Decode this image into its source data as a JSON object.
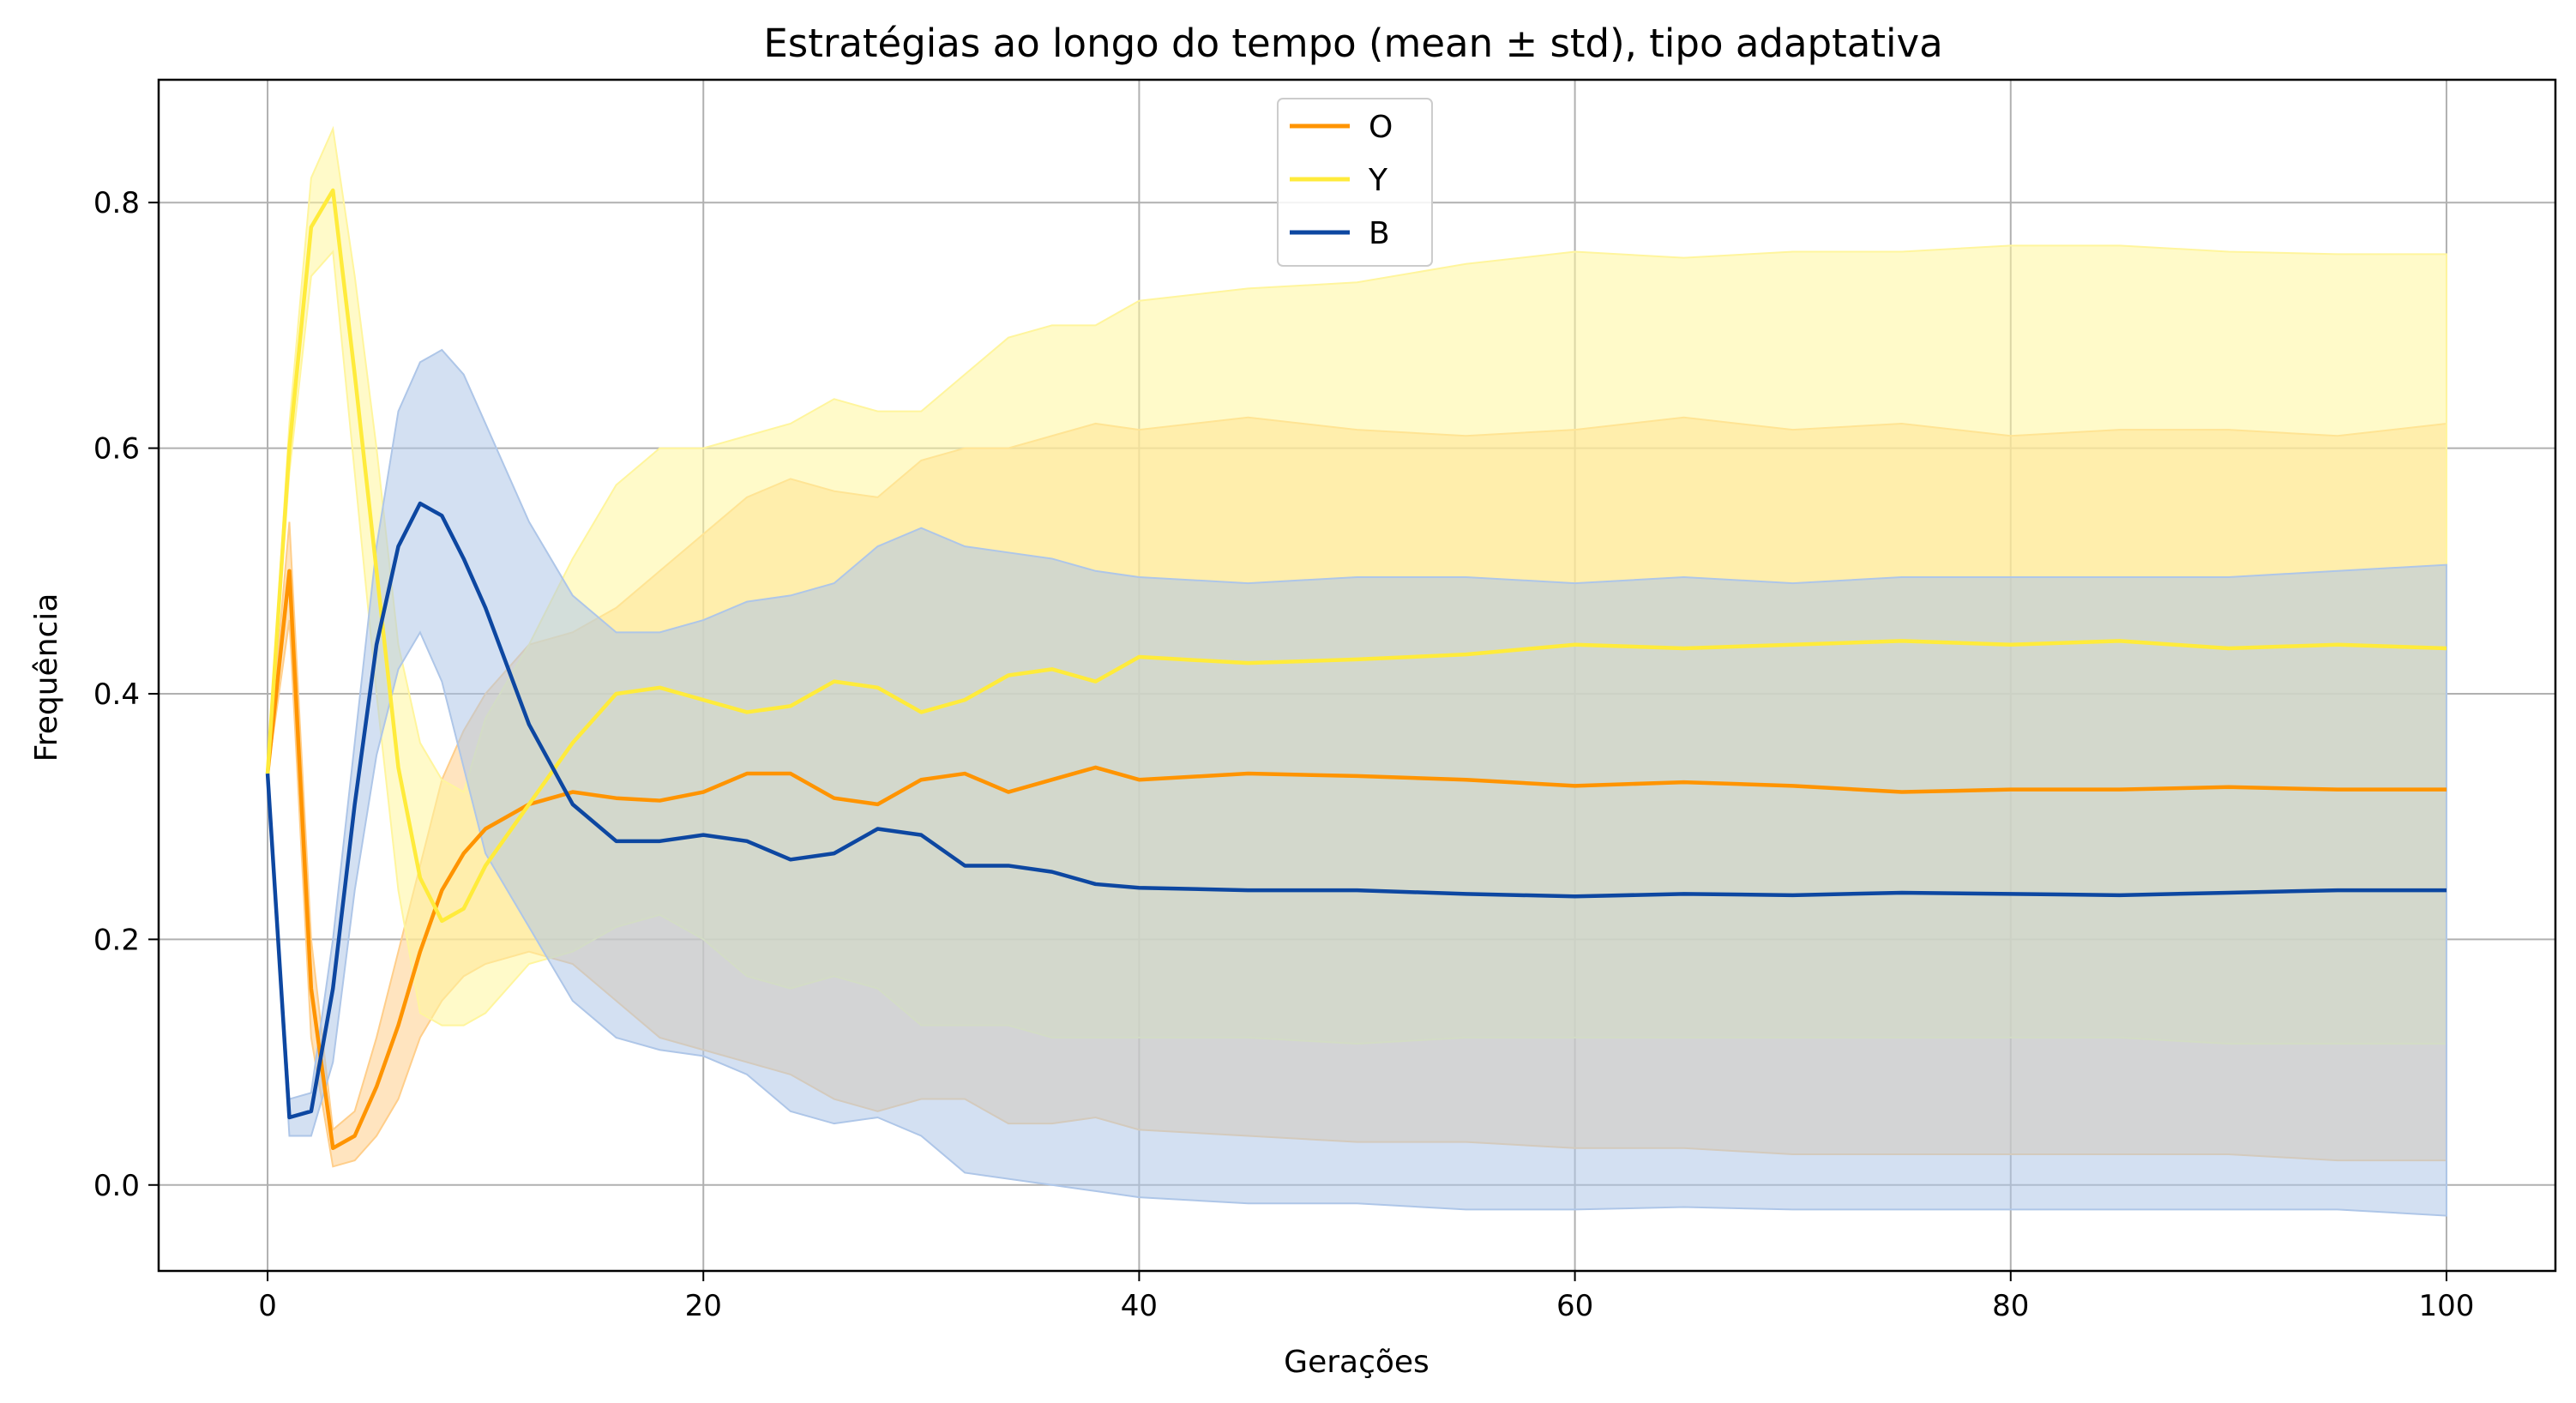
{
  "chart_data": {
    "type": "line",
    "title": "Estratégias ao longo do tempo (mean ± std), tipo adaptativa",
    "xlabel": "Gerações",
    "ylabel": "Frequência",
    "xlim": [
      -5,
      105
    ],
    "ylim": [
      -0.07,
      0.9
    ],
    "xticks": [
      0,
      20,
      40,
      60,
      80,
      100
    ],
    "yticks": [
      0.0,
      0.2,
      0.4,
      0.6,
      0.8
    ],
    "xtick_labels": [
      "0",
      "20",
      "40",
      "60",
      "80",
      "100"
    ],
    "ytick_labels": [
      "0.0",
      "0.2",
      "0.4",
      "0.6",
      "0.8"
    ],
    "grid": true,
    "legend_position": "top-center",
    "band": "mean ± std",
    "x": [
      0,
      1,
      2,
      3,
      4,
      5,
      6,
      7,
      8,
      9,
      10,
      12,
      14,
      16,
      18,
      20,
      22,
      24,
      26,
      28,
      30,
      32,
      34,
      36,
      38,
      40,
      45,
      50,
      55,
      60,
      65,
      70,
      75,
      80,
      85,
      90,
      95,
      100
    ],
    "series": [
      {
        "name": "O",
        "color": "#ff9400",
        "band_color": "#ffce8a",
        "mean": [
          0.335,
          0.5,
          0.16,
          0.03,
          0.04,
          0.08,
          0.13,
          0.19,
          0.24,
          0.27,
          0.29,
          0.31,
          0.32,
          0.315,
          0.313,
          0.32,
          0.335,
          0.335,
          0.315,
          0.31,
          0.33,
          0.335,
          0.32,
          0.33,
          0.34,
          0.33,
          0.335,
          0.333,
          0.33,
          0.325,
          0.328,
          0.325,
          0.32,
          0.322,
          0.322,
          0.324,
          0.322,
          0.322
        ],
        "upper": [
          0.335,
          0.54,
          0.2,
          0.045,
          0.06,
          0.12,
          0.19,
          0.26,
          0.33,
          0.37,
          0.4,
          0.44,
          0.45,
          0.47,
          0.5,
          0.53,
          0.56,
          0.575,
          0.565,
          0.56,
          0.59,
          0.6,
          0.6,
          0.61,
          0.62,
          0.615,
          0.625,
          0.615,
          0.61,
          0.615,
          0.625,
          0.615,
          0.62,
          0.61,
          0.615,
          0.615,
          0.61,
          0.62
        ],
        "lower": [
          0.335,
          0.46,
          0.12,
          0.015,
          0.02,
          0.04,
          0.07,
          0.12,
          0.15,
          0.17,
          0.18,
          0.19,
          0.18,
          0.15,
          0.12,
          0.11,
          0.1,
          0.09,
          0.07,
          0.06,
          0.07,
          0.07,
          0.05,
          0.05,
          0.055,
          0.045,
          0.04,
          0.035,
          0.035,
          0.03,
          0.03,
          0.025,
          0.025,
          0.025,
          0.025,
          0.025,
          0.02,
          0.02
        ]
      },
      {
        "name": "Y",
        "color": "#ffeb3b",
        "band_color": "#fff59d",
        "mean": [
          0.335,
          0.6,
          0.78,
          0.81,
          0.66,
          0.5,
          0.34,
          0.25,
          0.215,
          0.225,
          0.26,
          0.31,
          0.36,
          0.4,
          0.405,
          0.395,
          0.385,
          0.39,
          0.41,
          0.405,
          0.385,
          0.395,
          0.415,
          0.42,
          0.41,
          0.43,
          0.425,
          0.428,
          0.432,
          0.44,
          0.437,
          0.44,
          0.443,
          0.44,
          0.443,
          0.437,
          0.44,
          0.437
        ],
        "upper": [
          0.335,
          0.62,
          0.82,
          0.86,
          0.74,
          0.6,
          0.44,
          0.36,
          0.33,
          0.32,
          0.38,
          0.44,
          0.51,
          0.57,
          0.6,
          0.6,
          0.61,
          0.62,
          0.64,
          0.63,
          0.63,
          0.66,
          0.69,
          0.7,
          0.7,
          0.72,
          0.73,
          0.735,
          0.75,
          0.76,
          0.755,
          0.76,
          0.76,
          0.765,
          0.765,
          0.76,
          0.758,
          0.758
        ],
        "lower": [
          0.335,
          0.58,
          0.74,
          0.76,
          0.58,
          0.4,
          0.24,
          0.14,
          0.13,
          0.13,
          0.14,
          0.18,
          0.19,
          0.21,
          0.22,
          0.2,
          0.17,
          0.16,
          0.17,
          0.16,
          0.13,
          0.13,
          0.13,
          0.12,
          0.12,
          0.12,
          0.12,
          0.115,
          0.12,
          0.12,
          0.12,
          0.12,
          0.12,
          0.12,
          0.12,
          0.115,
          0.115,
          0.115
        ]
      },
      {
        "name": "B",
        "color": "#0d47a1",
        "band_color": "#aec6e8",
        "mean": [
          0.335,
          0.055,
          0.06,
          0.16,
          0.31,
          0.44,
          0.52,
          0.555,
          0.545,
          0.51,
          0.47,
          0.375,
          0.31,
          0.28,
          0.28,
          0.285,
          0.28,
          0.265,
          0.27,
          0.29,
          0.285,
          0.26,
          0.26,
          0.255,
          0.245,
          0.242,
          0.24,
          0.24,
          0.237,
          0.235,
          0.237,
          0.236,
          0.238,
          0.237,
          0.236,
          0.238,
          0.24,
          0.24
        ],
        "upper": [
          0.335,
          0.07,
          0.075,
          0.2,
          0.36,
          0.52,
          0.63,
          0.67,
          0.68,
          0.66,
          0.62,
          0.54,
          0.48,
          0.45,
          0.45,
          0.46,
          0.475,
          0.48,
          0.49,
          0.52,
          0.535,
          0.52,
          0.515,
          0.51,
          0.5,
          0.495,
          0.49,
          0.495,
          0.495,
          0.49,
          0.495,
          0.49,
          0.495,
          0.495,
          0.495,
          0.495,
          0.5,
          0.505
        ],
        "lower": [
          0.335,
          0.04,
          0.04,
          0.1,
          0.24,
          0.35,
          0.42,
          0.45,
          0.41,
          0.34,
          0.27,
          0.21,
          0.15,
          0.12,
          0.11,
          0.105,
          0.09,
          0.06,
          0.05,
          0.055,
          0.04,
          0.01,
          0.005,
          0.0,
          -0.005,
          -0.01,
          -0.015,
          -0.015,
          -0.02,
          -0.02,
          -0.018,
          -0.02,
          -0.02,
          -0.02,
          -0.02,
          -0.02,
          -0.02,
          -0.025
        ]
      }
    ]
  }
}
